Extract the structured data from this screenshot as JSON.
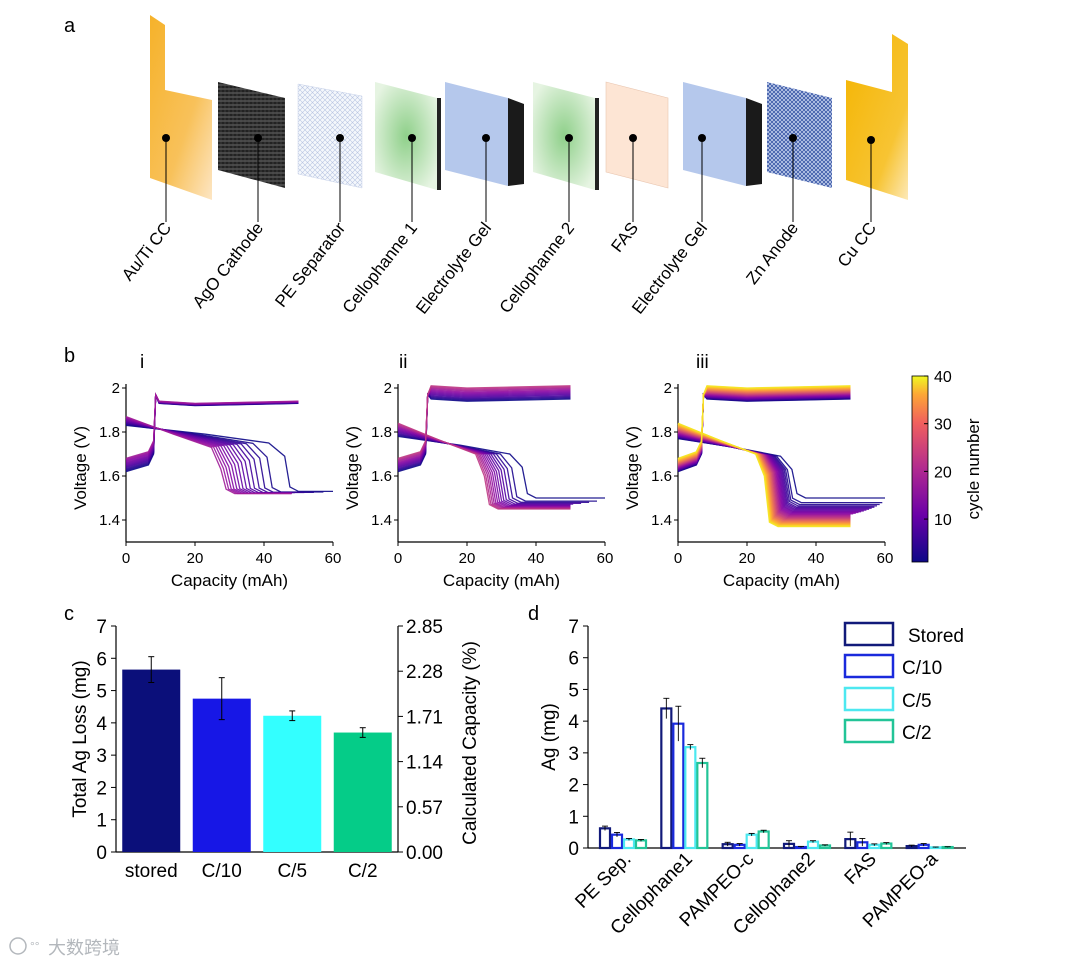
{
  "panels": {
    "a": "a",
    "b": "b",
    "c": "c",
    "d": "d"
  },
  "layers": [
    {
      "label": "Au/Ti CC",
      "style": "gold-cc"
    },
    {
      "label": "AgO Cathode",
      "style": "dark-mesh"
    },
    {
      "label": "PE Separator",
      "style": "light-mesh"
    },
    {
      "label": "Cellophanne 1",
      "style": "green-film"
    },
    {
      "label": "Electrolyte Gel",
      "style": "blue-block"
    },
    {
      "label": "Cellophanne 2",
      "style": "green-film"
    },
    {
      "label": "FAS",
      "style": "peach-film"
    },
    {
      "label": "Electrolyte Gel",
      "style": "blue-block"
    },
    {
      "label": "Zn Anode",
      "style": "blue-mesh"
    },
    {
      "label": "Cu CC",
      "style": "gold-cc"
    }
  ],
  "colors": {
    "stored": "#0b0f7a",
    "c10": "#1717e6",
    "c5": "#33ffff",
    "c2": "#05cc88",
    "d_stored": "#121a7a",
    "d_c10": "#1a2adc",
    "d_c5": "#4de8f0",
    "d_c2": "#22c497"
  },
  "chart_data": [
    {
      "id": "b-i",
      "type": "line",
      "subtitle": "i",
      "xlabel": "Capacity (mAh)",
      "ylabel": "Voltage (V)",
      "xlim": [
        0,
        60
      ],
      "ylim": [
        1.3,
        2.0
      ],
      "xticks": [
        "0",
        "20",
        "40",
        "60"
      ],
      "yticks": [
        "1.4",
        "1.6",
        "1.8",
        "2"
      ],
      "colorscale": "cycle number",
      "ncycles": 14,
      "cycle_range": [
        1,
        14
      ],
      "charge_plateau": [
        1.92,
        1.93
      ],
      "discharge_plateau_start": [
        1.83,
        1.87
      ],
      "discharge_cliff_capacity": [
        46,
        27.5
      ],
      "discharge_end_voltage": [
        1.53,
        1.52
      ],
      "discharge_end_capacity": [
        60,
        48
      ]
    },
    {
      "id": "b-ii",
      "type": "line",
      "subtitle": "ii",
      "xlabel": "Capacity (mAh)",
      "ylabel": "Voltage (V)",
      "xlim": [
        0,
        60
      ],
      "ylim": [
        1.3,
        2.0
      ],
      "xticks": [
        "0",
        "20",
        "40",
        "60"
      ],
      "yticks": [
        "1.4",
        "1.6",
        "1.8",
        "2"
      ],
      "colorscale": "cycle number",
      "ncycles": 14,
      "cycle_range": [
        1,
        14
      ],
      "charge_plateau": [
        1.94,
        2.0
      ],
      "discharge_plateau_start": [
        1.78,
        1.84
      ],
      "discharge_cliff_capacity": [
        36,
        25
      ],
      "discharge_end_voltage": [
        1.5,
        1.45
      ],
      "discharge_end_capacity": [
        60,
        50
      ]
    },
    {
      "id": "b-iii",
      "type": "line",
      "subtitle": "iii",
      "xlabel": "Capacity (mAh)",
      "ylabel": "Voltage (V)",
      "xlim": [
        0,
        60
      ],
      "ylim": [
        1.3,
        2.0
      ],
      "xticks": [
        "0",
        "20",
        "40",
        "60"
      ],
      "yticks": [
        "1.4",
        "1.6",
        "1.8",
        "2"
      ],
      "colorscale": "cycle number",
      "colorbar_ticks": [
        "10",
        "20",
        "30",
        "40"
      ],
      "colorbar_range": [
        1,
        40
      ],
      "ncycles": 40,
      "cycle_range": [
        1,
        40
      ],
      "charge_plateau": [
        1.94,
        2.0
      ],
      "discharge_plateau_start": [
        1.77,
        1.84
      ],
      "discharge_cliff_capacity": [
        33,
        25
      ],
      "discharge_end_voltage": [
        1.5,
        1.37
      ],
      "discharge_end_capacity": [
        60,
        50
      ]
    },
    {
      "id": "c",
      "type": "bar",
      "categories": [
        "stored",
        "C/10",
        "C/5",
        "C/2"
      ],
      "values": [
        5.65,
        4.75,
        4.22,
        3.7
      ],
      "errors": [
        0.4,
        0.65,
        0.15,
        0.15
      ],
      "ylabel": "Total Ag Loss (mg)",
      "ylim": [
        0,
        7
      ],
      "yticks": [
        "0",
        "1",
        "2",
        "3",
        "4",
        "5",
        "6",
        "7"
      ],
      "y2label": "Calculated Capacity (%)",
      "y2ticks": [
        "0.00",
        "0.57",
        "1.14",
        "1.71",
        "2.28",
        "2.85"
      ]
    },
    {
      "id": "d",
      "type": "bar",
      "categories": [
        "PE Sep.",
        "Cellophane1",
        "PAMPEO-c",
        "Cellophane2",
        "FAS",
        "PAMPEO-a"
      ],
      "series": [
        {
          "name": "Stored",
          "values": [
            0.62,
            4.4,
            0.12,
            0.13,
            0.28,
            0.06
          ],
          "errors": [
            0.07,
            0.32,
            0.06,
            0.1,
            0.22,
            0.03
          ]
        },
        {
          "name": "C/10",
          "values": [
            0.42,
            3.92,
            0.1,
            0.03,
            0.18,
            0.1
          ],
          "errors": [
            0.07,
            0.55,
            0.04,
            0.02,
            0.12,
            0.04
          ]
        },
        {
          "name": "C/5",
          "values": [
            0.27,
            3.18,
            0.42,
            0.2,
            0.1,
            0.02
          ],
          "errors": [
            0.03,
            0.08,
            0.04,
            0.03,
            0.03,
            0.01
          ]
        },
        {
          "name": "C/2",
          "values": [
            0.24,
            2.68,
            0.52,
            0.08,
            0.14,
            0.03
          ],
          "errors": [
            0.03,
            0.15,
            0.04,
            0.02,
            0.03,
            0.01
          ]
        }
      ],
      "ylabel": "Ag (mg)",
      "ylim": [
        0,
        7
      ],
      "yticks": [
        "0",
        "1",
        "2",
        "3",
        "4",
        "5",
        "6",
        "7"
      ],
      "legend": "top-right"
    }
  ],
  "watermark": "大数跨境"
}
